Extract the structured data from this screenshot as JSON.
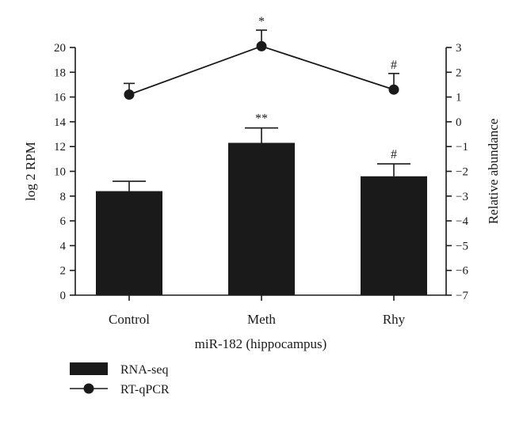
{
  "chart_data": {
    "type": "bar+line",
    "categories": [
      "Control",
      "Meth",
      "Rhy"
    ],
    "xlabel": "miR-182 (hippocampus)",
    "ylabel": "log 2 RPM",
    "y2label": "Relative abundance",
    "ylim": [
      0,
      20
    ],
    "y2lim": [
      -7,
      3
    ],
    "yticks": [
      0,
      2,
      4,
      6,
      8,
      10,
      12,
      14,
      16,
      18,
      20
    ],
    "y2ticks": [
      -7,
      -6,
      -5,
      -4,
      -3,
      -2,
      -1,
      0,
      1,
      2,
      3
    ],
    "grid": false,
    "legend_position": "bottom-left",
    "series": [
      {
        "name": "RNA-seq",
        "kind": "bar",
        "axis": "left",
        "color": "#1a1a1a",
        "values": [
          8.4,
          12.3,
          9.6
        ],
        "errors": [
          0.8,
          1.2,
          1.0
        ],
        "significance": [
          "",
          "**",
          "#"
        ]
      },
      {
        "name": "RT-qPCR",
        "kind": "line",
        "axis": "right",
        "color": "#1a1a1a",
        "values": [
          1.1,
          3.05,
          1.3
        ],
        "errors": [
          0.45,
          0.65,
          0.65
        ],
        "significance": [
          "",
          "*",
          "#"
        ]
      }
    ]
  }
}
